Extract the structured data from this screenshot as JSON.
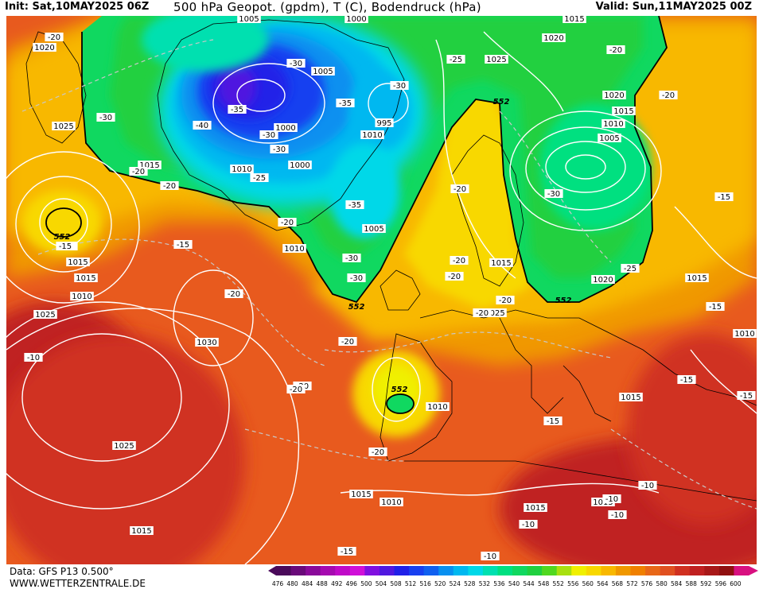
{
  "header": {
    "init": "Init: Sat,10MAY2025 06Z",
    "title": "500 hPa Geopot. (gpdm), T (C), Bodendruck (hPa)",
    "valid": "Valid: Sun,11MAY2025 00Z"
  },
  "footer": {
    "data_source": "Data: GFS P13 0.500°",
    "website": "WWW.WETTERZENTRALE.DE"
  },
  "colorbar": {
    "ticks": [
      "476",
      "480",
      "484",
      "488",
      "492",
      "496",
      "500",
      "504",
      "508",
      "512",
      "516",
      "520",
      "524",
      "528",
      "532",
      "536",
      "540",
      "544",
      "548",
      "552",
      "556",
      "560",
      "564",
      "568",
      "572",
      "576",
      "580",
      "584",
      "588",
      "592",
      "596",
      "600"
    ],
    "colors": [
      "#4a0a5a",
      "#6a0a7a",
      "#8a0a9a",
      "#a60ab0",
      "#c00ac8",
      "#d010d8",
      "#8010e0",
      "#5018e0",
      "#2020e8",
      "#1840f0",
      "#1060f0",
      "#0890f0",
      "#00b8f0",
      "#00d8e8",
      "#00e0b0",
      "#00e080",
      "#10d860",
      "#20d040",
      "#50d820",
      "#a8e010",
      "#f0f000",
      "#f8d800",
      "#f8b800",
      "#f09800",
      "#f08000",
      "#e86818",
      "#e05020",
      "#d03020",
      "#c02020",
      "#a81818",
      "#901010",
      "#d81080"
    ]
  },
  "map_labels": {
    "pressure": [
      "1020",
      "1005",
      "1000",
      "1015",
      "1020",
      "1025",
      "1005",
      "995",
      "1025",
      "1000",
      "1010",
      "1010",
      "1020",
      "1015",
      "1005",
      "1015",
      "1010",
      "1000",
      "1005",
      "1010",
      "1015",
      "1015",
      "1010",
      "1015",
      "1025",
      "1020",
      "1015",
      "1025",
      "1030",
      "1025",
      "1015",
      "1015",
      "1010",
      "1015",
      "1015",
      "1015",
      "1010",
      "1010"
    ],
    "temperature": [
      "-20",
      "-30",
      "-35",
      "-40",
      "-30",
      "-35",
      "-30",
      "-25",
      "-20",
      "-25",
      "-20",
      "-35",
      "-30",
      "-30",
      "-25",
      "-20",
      "-20",
      "-15",
      "-20",
      "-15",
      "-20",
      "-20",
      "-20",
      "-20",
      "-20",
      "-15",
      "-20",
      "-10",
      "-20",
      "-15",
      "-15",
      "-15",
      "-10",
      "-10",
      "-10",
      "-10",
      "-15",
      "-30",
      "-20",
      "-15",
      "-20",
      "-30",
      "-30",
      "-20",
      "-15",
      "-10"
    ],
    "geopotential": [
      "552",
      "552",
      "552",
      "552",
      "552"
    ]
  },
  "colors": {
    "contour": "#ffffff",
    "coast": "#000000",
    "geo_552": "#000000"
  }
}
